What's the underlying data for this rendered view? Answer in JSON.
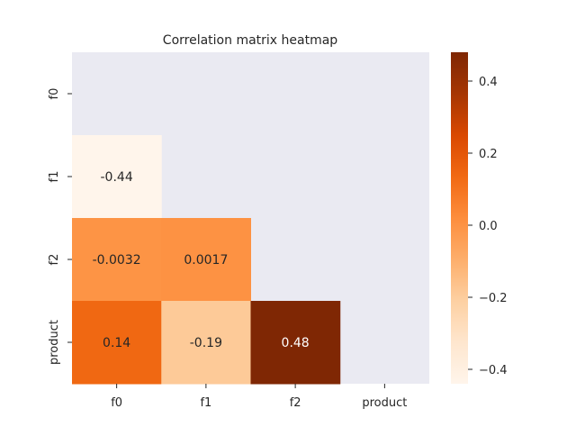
{
  "chart_data": {
    "type": "heatmap",
    "title": "Correlation matrix heatmap",
    "xlabel": "",
    "ylabel": "",
    "x_categories": [
      "f0",
      "f1",
      "f2",
      "product"
    ],
    "y_categories": [
      "f0",
      "f1",
      "f2",
      "product"
    ],
    "mask": "upper-triangle-including-diagonal",
    "cells": [
      {
        "row": "f1",
        "col": "f0",
        "value": -0.44,
        "label": "-0.44"
      },
      {
        "row": "f2",
        "col": "f0",
        "value": -0.0032,
        "label": "-0.0032"
      },
      {
        "row": "f2",
        "col": "f1",
        "value": 0.0017,
        "label": "0.0017"
      },
      {
        "row": "product",
        "col": "f0",
        "value": 0.14,
        "label": "0.14"
      },
      {
        "row": "product",
        "col": "f1",
        "value": -0.19,
        "label": "-0.19"
      },
      {
        "row": "product",
        "col": "f2",
        "value": 0.48,
        "label": "0.48"
      }
    ],
    "colormap": "Oranges",
    "vmin": -0.44,
    "vmax": 0.48,
    "colorbar_ticks": [
      {
        "value": 0.4,
        "label": "0.4"
      },
      {
        "value": 0.2,
        "label": "0.2"
      },
      {
        "value": 0.0,
        "label": "0.0"
      },
      {
        "value": -0.2,
        "label": "−0.2"
      },
      {
        "value": -0.4,
        "label": "−0.4"
      }
    ],
    "colors": {
      "axes_background": "#eaeaf2",
      "text_dark": "#262626",
      "text_light": "#ffffff",
      "figure_background": "#ffffff"
    }
  }
}
